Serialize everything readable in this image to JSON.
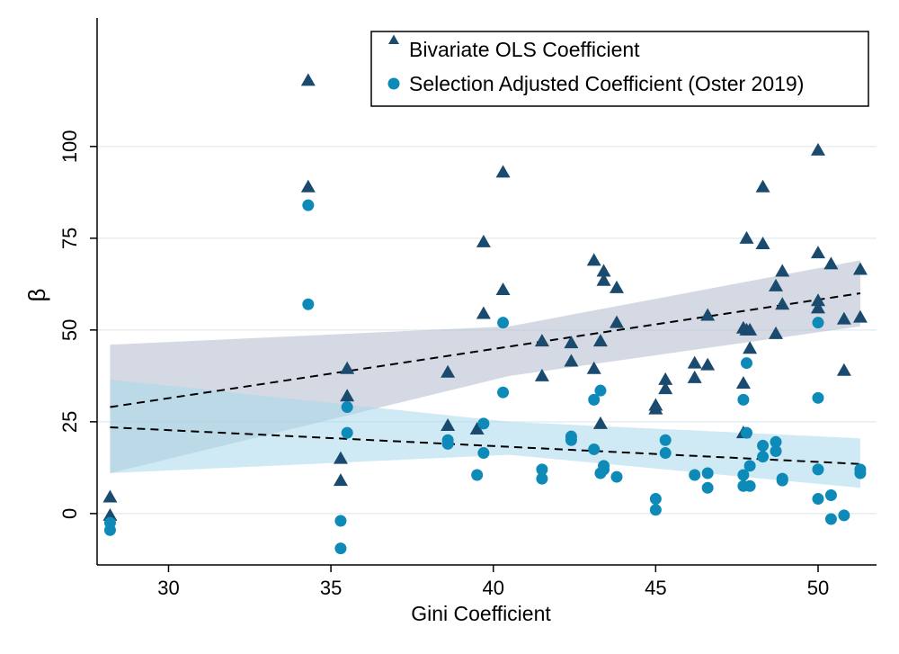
{
  "chart_data": {
    "type": "scatter",
    "title": "",
    "xlabel": "Gini Coefficient",
    "ylabel": "β",
    "xlim": [
      27.8,
      51.8
    ],
    "ylim": [
      -14,
      135
    ],
    "xticks": [
      30,
      35,
      40,
      45,
      50
    ],
    "yticks": [
      0,
      25,
      50,
      75,
      100
    ],
    "grid": true,
    "legend_position": "top-right",
    "colors": {
      "ols": "#1a4a6e",
      "adjusted": "#0e8ab8",
      "ols_band": "#b7c0d1",
      "adjusted_band": "#a8d8ec",
      "fit_line": "#000000",
      "grid": "#e4eef2"
    },
    "series": [
      {
        "name": "Bivariate OLS Coefficient",
        "marker": "triangle",
        "points": [
          [
            28.2,
            4.5
          ],
          [
            28.2,
            -0.5
          ],
          [
            34.3,
            118
          ],
          [
            34.3,
            89
          ],
          [
            35.3,
            15
          ],
          [
            35.3,
            9
          ],
          [
            35.5,
            39.5
          ],
          [
            35.5,
            32
          ],
          [
            38.6,
            38.5
          ],
          [
            38.6,
            24
          ],
          [
            39.5,
            23
          ],
          [
            39.7,
            74
          ],
          [
            39.7,
            54.5
          ],
          [
            40.3,
            93
          ],
          [
            40.3,
            61
          ],
          [
            41.5,
            47
          ],
          [
            41.5,
            37.5
          ],
          [
            42.4,
            46.5
          ],
          [
            42.4,
            41.5
          ],
          [
            43.1,
            69
          ],
          [
            43.1,
            39.5
          ],
          [
            43.3,
            47
          ],
          [
            43.3,
            24.5
          ],
          [
            43.4,
            66
          ],
          [
            43.4,
            63.5
          ],
          [
            43.8,
            61.5
          ],
          [
            43.8,
            52
          ],
          [
            45.0,
            29.5
          ],
          [
            45.0,
            28.5
          ],
          [
            45.3,
            36.5
          ],
          [
            45.3,
            34
          ],
          [
            46.2,
            41
          ],
          [
            46.2,
            37
          ],
          [
            46.6,
            54
          ],
          [
            46.6,
            40.5
          ],
          [
            47.7,
            50.5
          ],
          [
            47.7,
            35.5
          ],
          [
            47.7,
            22
          ],
          [
            47.8,
            75
          ],
          [
            47.8,
            50
          ],
          [
            47.9,
            50
          ],
          [
            47.9,
            45
          ],
          [
            48.3,
            89
          ],
          [
            48.3,
            73.5
          ],
          [
            48.7,
            62
          ],
          [
            48.7,
            49
          ],
          [
            48.9,
            66
          ],
          [
            48.9,
            57
          ],
          [
            50.0,
            99
          ],
          [
            50.0,
            71
          ],
          [
            50.0,
            58
          ],
          [
            50.0,
            56
          ],
          [
            50.4,
            68
          ],
          [
            50.8,
            53
          ],
          [
            50.8,
            39
          ],
          [
            51.3,
            66.5
          ],
          [
            51.3,
            53.5
          ]
        ]
      },
      {
        "name": "Selection Adjusted Coefficient (Oster 2019)",
        "marker": "circle",
        "points": [
          [
            28.2,
            -2.5
          ],
          [
            28.2,
            -4.5
          ],
          [
            34.3,
            84
          ],
          [
            34.3,
            57
          ],
          [
            35.3,
            -2
          ],
          [
            35.3,
            -9.5
          ],
          [
            35.5,
            29
          ],
          [
            35.5,
            22
          ],
          [
            38.6,
            20
          ],
          [
            38.6,
            19
          ],
          [
            39.5,
            10.5
          ],
          [
            39.7,
            24.5
          ],
          [
            39.7,
            16.5
          ],
          [
            40.3,
            52
          ],
          [
            40.3,
            33
          ],
          [
            41.5,
            12
          ],
          [
            41.5,
            9.5
          ],
          [
            42.4,
            21
          ],
          [
            42.4,
            20
          ],
          [
            43.1,
            31
          ],
          [
            43.1,
            17.5
          ],
          [
            43.3,
            33.5
          ],
          [
            43.3,
            11
          ],
          [
            43.4,
            13
          ],
          [
            43.4,
            12
          ],
          [
            43.8,
            10
          ],
          [
            45.0,
            4
          ],
          [
            45.0,
            1
          ],
          [
            45.3,
            20
          ],
          [
            45.3,
            16.5
          ],
          [
            46.2,
            10.5
          ],
          [
            46.6,
            11
          ],
          [
            46.6,
            7
          ],
          [
            47.7,
            31
          ],
          [
            47.7,
            10.5
          ],
          [
            47.7,
            7.5
          ],
          [
            47.8,
            41
          ],
          [
            47.8,
            22
          ],
          [
            47.9,
            13
          ],
          [
            47.9,
            7.5
          ],
          [
            48.3,
            18.5
          ],
          [
            48.3,
            15.5
          ],
          [
            48.7,
            19.5
          ],
          [
            48.7,
            17
          ],
          [
            48.9,
            9.5
          ],
          [
            48.9,
            9
          ],
          [
            50.0,
            52
          ],
          [
            50.0,
            31.5
          ],
          [
            50.0,
            12
          ],
          [
            50.0,
            4
          ],
          [
            50.4,
            5
          ],
          [
            50.4,
            -1.5
          ],
          [
            50.8,
            -0.5
          ],
          [
            51.3,
            12
          ],
          [
            51.3,
            11
          ]
        ]
      }
    ],
    "fit_lines": [
      {
        "series": "Bivariate OLS Coefficient",
        "x": [
          28.2,
          51.3
        ],
        "y": [
          29,
          60
        ],
        "band_upper": [
          46,
          51,
          69
        ],
        "band_lower": [
          11,
          37.5,
          51
        ],
        "band_x": [
          28.2,
          40.5,
          51.3
        ]
      },
      {
        "series": "Selection Adjusted Coefficient (Oster 2019)",
        "x": [
          28.2,
          51.3
        ],
        "y": [
          23.5,
          13.5
        ],
        "band_upper": [
          36.5,
          25,
          20.5
        ],
        "band_lower": [
          11,
          16,
          7
        ],
        "band_x": [
          28.2,
          40.5,
          51.3
        ]
      }
    ]
  }
}
